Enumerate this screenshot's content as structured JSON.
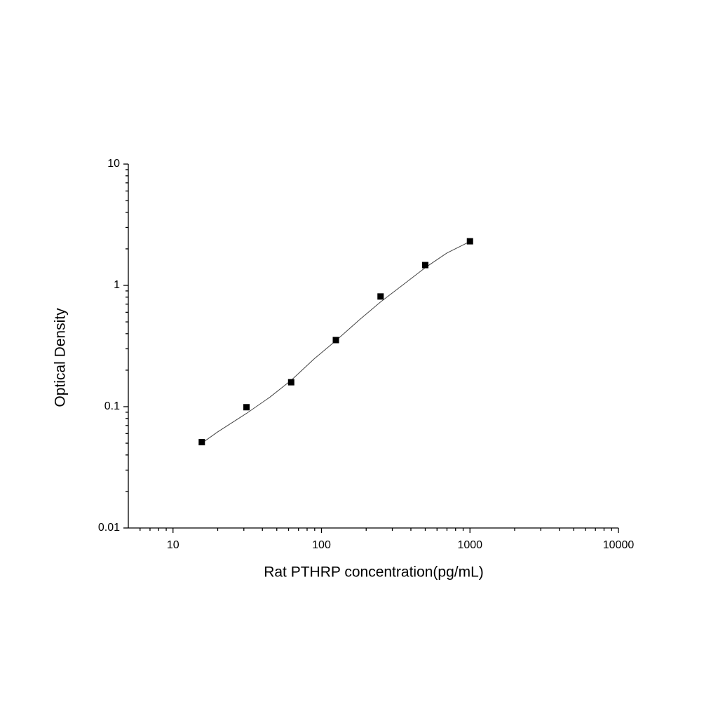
{
  "chart_data": {
    "type": "scatter",
    "xlabel": "Rat PTHRP concentration(pg/mL)",
    "ylabel": "Optical Density",
    "x": [
      15.625,
      31.25,
      62.5,
      125,
      250,
      500,
      1000
    ],
    "values": [
      0.051,
      0.099,
      0.159,
      0.354,
      0.81,
      1.47,
      2.31
    ],
    "color": "#000000",
    "curve": {
      "x": [
        15.625,
        20,
        31.25,
        45,
        62.5,
        90,
        125,
        180,
        250,
        350,
        500,
        700,
        1000
      ],
      "values": [
        0.05,
        0.062,
        0.088,
        0.12,
        0.165,
        0.25,
        0.35,
        0.52,
        0.73,
        1.0,
        1.4,
        1.85,
        2.3
      ],
      "color": "#444444"
    },
    "xscale": "log",
    "yscale": "log",
    "xlim": [
      5,
      10000
    ],
    "ylim": [
      0.01,
      10
    ],
    "xticks": [
      10,
      100,
      1000,
      10000
    ],
    "yticks": [
      0.01,
      0.1,
      1,
      10
    ],
    "xminorticks": [
      6,
      7,
      8,
      9,
      20,
      30,
      40,
      50,
      60,
      70,
      80,
      90,
      200,
      300,
      400,
      500,
      600,
      700,
      800,
      900,
      2000,
      3000,
      4000,
      5000,
      6000,
      7000,
      8000,
      9000
    ],
    "yminorticks": [
      0.02,
      0.03,
      0.04,
      0.05,
      0.06,
      0.07,
      0.08,
      0.09,
      0.2,
      0.3,
      0.4,
      0.5,
      0.6,
      0.7,
      0.8,
      0.9,
      2,
      3,
      4,
      5,
      6,
      7,
      8,
      9
    ]
  }
}
